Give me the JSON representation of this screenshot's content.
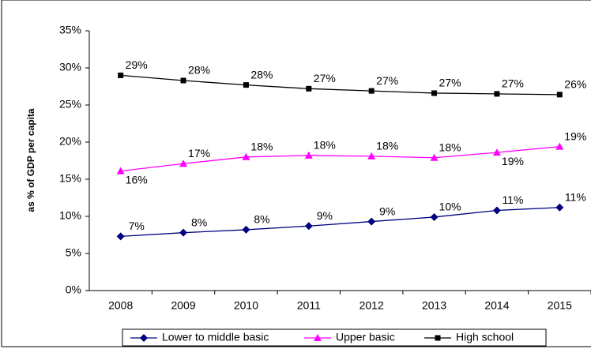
{
  "chart_data": {
    "type": "line",
    "y_label": "as % of GDP per capita",
    "categories": [
      "2008",
      "2009",
      "2010",
      "2011",
      "2012",
      "2013",
      "2014",
      "2015"
    ],
    "series": [
      {
        "name": "Lower to middle basic",
        "color": "#000080",
        "marker": "diamond",
        "values": [
          7.3,
          7.8,
          8.2,
          8.7,
          9.3,
          9.9,
          10.8,
          11.2
        ],
        "value_labels": [
          "7%",
          "8%",
          "8%",
          "9%",
          "9%",
          "10%",
          "11%",
          "11%"
        ]
      },
      {
        "name": "Upper basic",
        "color": "#ff00ff",
        "marker": "triangle",
        "values": [
          16.1,
          17.1,
          18.0,
          18.2,
          18.1,
          17.9,
          18.6,
          19.4
        ],
        "value_labels": [
          "16%",
          "17%",
          "18%",
          "18%",
          "18%",
          "18%",
          "19%",
          "19%"
        ]
      },
      {
        "name": "High school",
        "color": "#000000",
        "marker": "square",
        "values": [
          29.0,
          28.3,
          27.7,
          27.2,
          26.9,
          26.6,
          26.5,
          26.4
        ],
        "value_labels": [
          "29%",
          "28%",
          "28%",
          "27%",
          "27%",
          "27%",
          "27%",
          "26%"
        ]
      }
    ],
    "ylim": [
      0,
      35
    ],
    "yticks": [
      {
        "value": 0,
        "label": "0%"
      },
      {
        "value": 5,
        "label": "5%"
      },
      {
        "value": 10,
        "label": "10%"
      },
      {
        "value": 15,
        "label": "15%"
      },
      {
        "value": 20,
        "label": "20%"
      },
      {
        "value": 25,
        "label": "25%"
      },
      {
        "value": 30,
        "label": "30%"
      },
      {
        "value": 35,
        "label": "35%"
      }
    ],
    "legend": "bottom"
  }
}
